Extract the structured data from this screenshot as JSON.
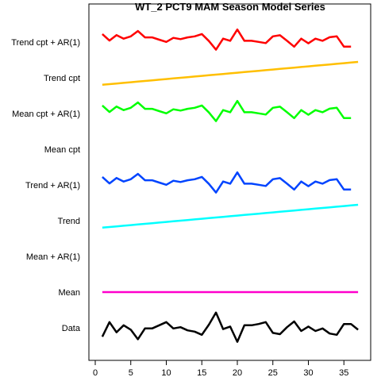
{
  "chart_data": {
    "type": "line",
    "title": "WT_2 PCT9 MAM Season Model Series",
    "xlabel": "",
    "ylabel": "",
    "xlim": [
      0,
      38
    ],
    "x_ticks": [
      0,
      5,
      10,
      15,
      20,
      25,
      30,
      35
    ],
    "grid": false,
    "legend": "none",
    "row_labels": [
      "Trend cpt + AR(1)",
      "Trend cpt",
      "Mean cpt + AR(1)",
      "Mean cpt",
      "Trend + AR(1)",
      "Trend",
      "Mean + AR(1)",
      "Mean",
      "Data"
    ],
    "x": [
      1,
      2,
      3,
      4,
      5,
      6,
      7,
      8,
      9,
      10,
      11,
      12,
      13,
      14,
      15,
      16,
      17,
      18,
      19,
      20,
      21,
      22,
      23,
      24,
      25,
      26,
      27,
      28,
      29,
      30,
      31,
      32,
      33,
      34,
      35,
      36,
      37
    ],
    "series": [
      {
        "row": 0,
        "color": "#ff0000",
        "values": [
          0.63,
          0.12,
          0.55,
          0.27,
          0.45,
          0.87,
          0.37,
          0.37,
          0.19,
          0.01,
          0.33,
          0.23,
          0.37,
          0.45,
          0.63,
          0.08,
          -0.6,
          0.27,
          0.1,
          0.99,
          0.1,
          0.1,
          0.01,
          -0.08,
          0.45,
          0.54,
          0.1,
          -0.36,
          0.27,
          -0.1,
          0.27,
          0.1,
          0.38,
          0.45,
          -0.36,
          -0.36,
          null
        ]
      },
      {
        "row": 1,
        "color": "#ffbf00",
        "values": [
          -0.55,
          -0.5,
          -0.45,
          -0.4,
          -0.35,
          -0.3,
          -0.25,
          -0.2,
          -0.15,
          -0.1,
          -0.05,
          0.0,
          0.05,
          0.1,
          0.15,
          0.2,
          0.25,
          0.3,
          0.35,
          0.4,
          0.45,
          0.5,
          0.55,
          0.6,
          0.65,
          0.7,
          0.75,
          0.8,
          0.85,
          0.9,
          0.95,
          1.0,
          1.05,
          1.1,
          1.15,
          1.2,
          1.25
        ]
      },
      {
        "row": 2,
        "color": "#00ff00",
        "values": [
          0.63,
          0.12,
          0.55,
          0.27,
          0.45,
          0.87,
          0.37,
          0.37,
          0.19,
          0.01,
          0.33,
          0.23,
          0.37,
          0.45,
          0.63,
          0.08,
          -0.6,
          0.27,
          0.1,
          0.99,
          0.1,
          0.1,
          0.01,
          -0.08,
          0.45,
          0.54,
          0.1,
          -0.36,
          0.27,
          -0.1,
          0.27,
          0.1,
          0.38,
          0.45,
          -0.36,
          -0.36,
          null
        ]
      },
      {
        "row": 4,
        "color": "#0044ff",
        "values": [
          0.63,
          0.12,
          0.55,
          0.27,
          0.45,
          0.87,
          0.37,
          0.37,
          0.19,
          0.01,
          0.33,
          0.23,
          0.37,
          0.45,
          0.63,
          0.08,
          -0.6,
          0.27,
          0.1,
          0.99,
          0.1,
          0.1,
          0.01,
          -0.08,
          0.45,
          0.54,
          0.1,
          -0.36,
          0.27,
          -0.1,
          0.27,
          0.1,
          0.38,
          0.45,
          -0.36,
          -0.36,
          null
        ]
      },
      {
        "row": 5,
        "color": "#00ffff",
        "values": [
          -0.55,
          -0.5,
          -0.45,
          -0.4,
          -0.35,
          -0.3,
          -0.25,
          -0.2,
          -0.15,
          -0.1,
          -0.05,
          0.0,
          0.05,
          0.1,
          0.15,
          0.2,
          0.25,
          0.3,
          0.35,
          0.4,
          0.45,
          0.5,
          0.55,
          0.6,
          0.65,
          0.7,
          0.75,
          0.8,
          0.85,
          0.9,
          0.95,
          1.0,
          1.05,
          1.1,
          1.15,
          1.2,
          1.25
        ]
      },
      {
        "row": 7,
        "color": "#ff00cc",
        "values": [
          0,
          0,
          0,
          0,
          0,
          0,
          0,
          0,
          0,
          0,
          0,
          0,
          0,
          0,
          0,
          0,
          0,
          0,
          0,
          0,
          0,
          0,
          0,
          0,
          0,
          0,
          0,
          0,
          0,
          0,
          0,
          0,
          0,
          0,
          0,
          0,
          0
        ]
      },
      {
        "row": 8,
        "color": "#000000",
        "values": [
          -0.7,
          0.45,
          -0.35,
          0.2,
          -0.15,
          -0.9,
          -0.05,
          -0.05,
          0.2,
          0.45,
          -0.05,
          0.05,
          -0.2,
          -0.3,
          -0.55,
          0.25,
          1.2,
          -0.1,
          0.1,
          -1.1,
          0.2,
          0.2,
          0.3,
          0.45,
          -0.4,
          -0.5,
          0.05,
          0.5,
          -0.25,
          0.1,
          -0.25,
          -0.05,
          -0.45,
          -0.55,
          0.3,
          0.3,
          -0.15
        ]
      }
    ]
  }
}
